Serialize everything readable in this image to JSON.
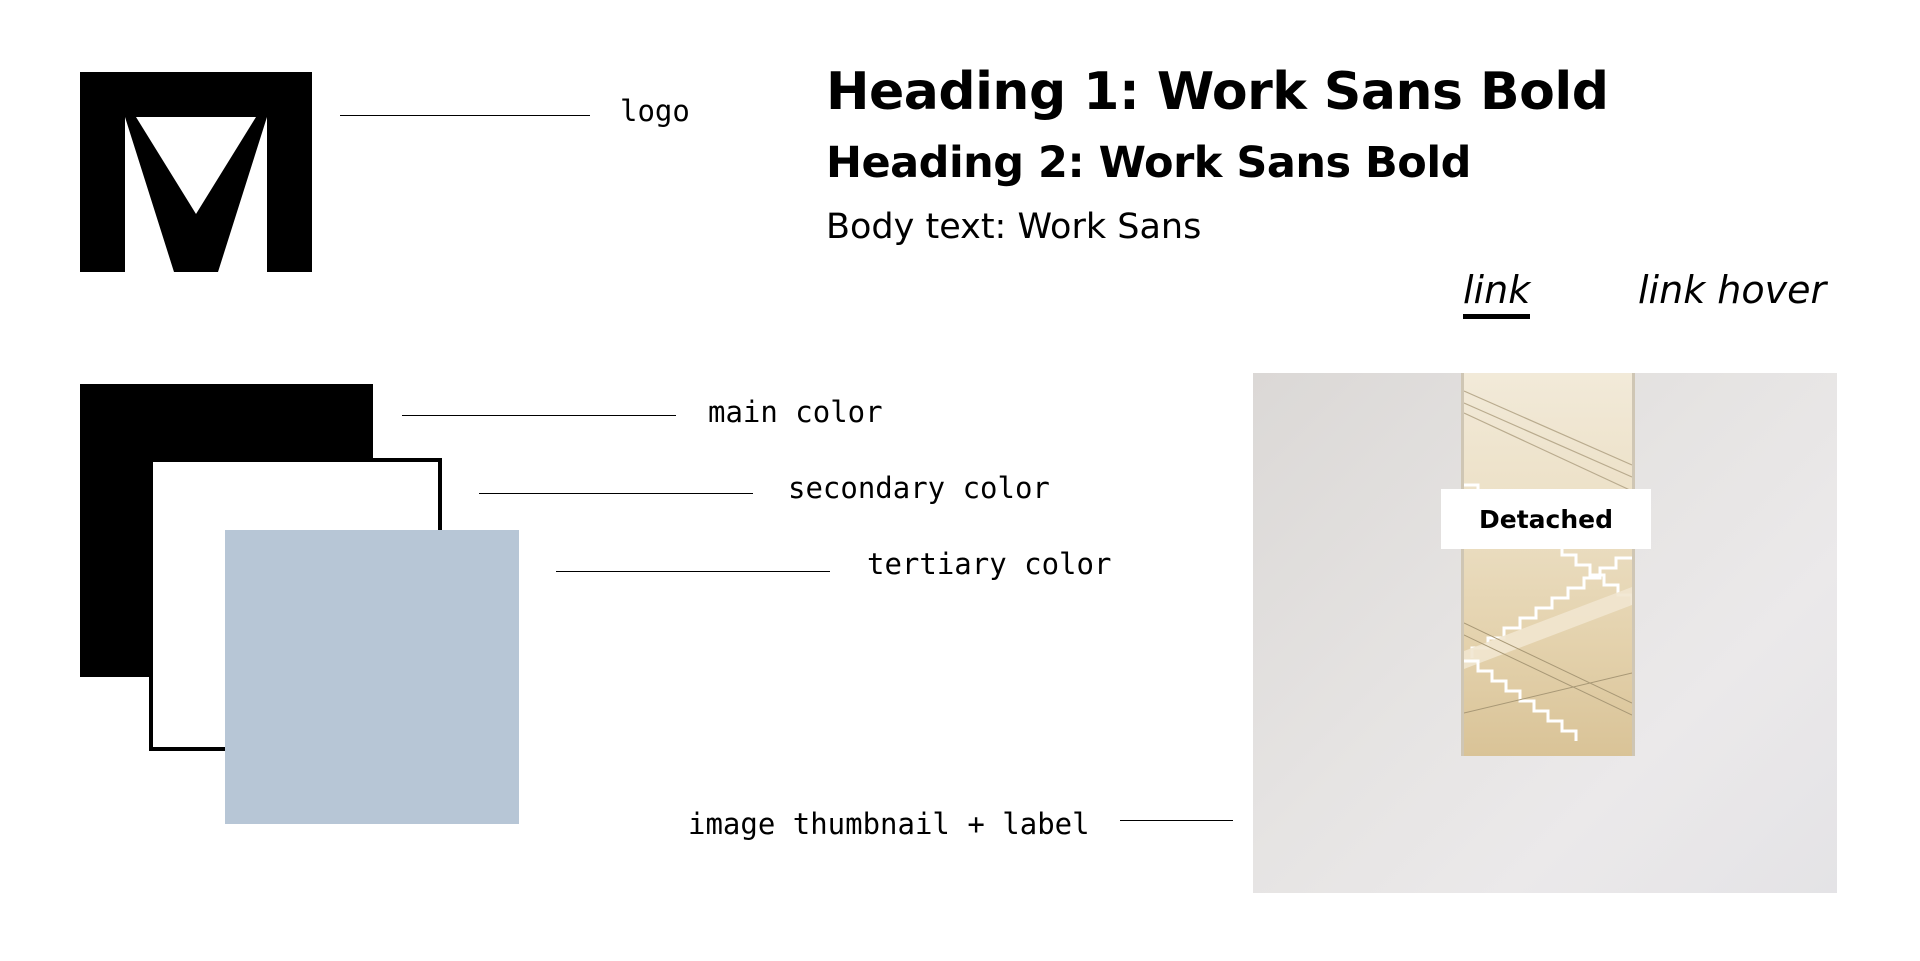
{
  "logo": {
    "icon": "ma-monogram-logo",
    "annotation": "logo"
  },
  "typography": {
    "heading1": "Heading 1: Work Sans Bold",
    "heading2": "Heading 2: Work Sans Bold",
    "body": "Body text: Work Sans"
  },
  "links": {
    "link": "link",
    "link_hover": "link hover"
  },
  "colors": {
    "main": {
      "annotation": "main color",
      "hex": "#000000"
    },
    "secondary": {
      "annotation": "secondary color",
      "hex": "#ffffff"
    },
    "tertiary": {
      "annotation": "tertiary color",
      "hex": "#b7c6d6"
    }
  },
  "thumbnail": {
    "annotation": "image thumbnail + label",
    "label": "Detached",
    "icon": "staircase-photo"
  }
}
